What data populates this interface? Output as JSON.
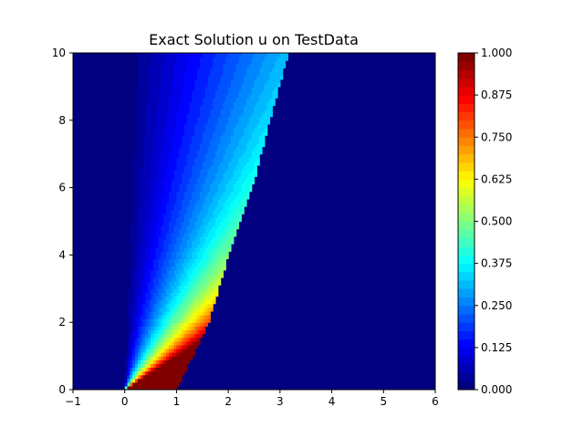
{
  "chart_data": {
    "type": "heatmap",
    "title": "Exact Solution u on TestData",
    "xlabel": "",
    "ylabel": "",
    "xlim": [
      -1,
      6
    ],
    "ylim": [
      0,
      10
    ],
    "x_ticks": [
      "−1",
      "0",
      "1",
      "2",
      "3",
      "4",
      "5",
      "6"
    ],
    "x_tick_values": [
      -1,
      0,
      1,
      2,
      3,
      4,
      5,
      6
    ],
    "y_ticks": [
      "0",
      "2",
      "4",
      "6",
      "8",
      "10"
    ],
    "y_tick_values": [
      0,
      2,
      4,
      6,
      8,
      10
    ],
    "colorbar": {
      "min": 0.0,
      "max": 1.0,
      "ticks": [
        "0.000",
        "0.125",
        "0.250",
        "0.375",
        "0.500",
        "0.625",
        "0.750",
        "0.875",
        "1.000"
      ],
      "tick_values": [
        0,
        0.125,
        0.25,
        0.375,
        0.5,
        0.625,
        0.75,
        0.875,
        1.0
      ],
      "colormap": "jet",
      "levels": 40
    },
    "field": {
      "description_of_regions": "u = 0 for x < 0; u = x/t (fan) for 0 < x < t; u = 1 for t < x < shock; u = 0 beyond shock",
      "shock_line": [
        [
          0,
          1
        ],
        [
          2,
          1.62
        ],
        [
          4,
          2.0
        ],
        [
          6,
          2.46
        ],
        [
          8,
          2.8
        ],
        [
          10,
          3.16
        ]
      ],
      "fan_apex": [
        0,
        0
      ],
      "fan_edge_slope_u1": 1.0,
      "background_value": 0.0,
      "plateau_value": 1.0
    },
    "grid": false
  }
}
